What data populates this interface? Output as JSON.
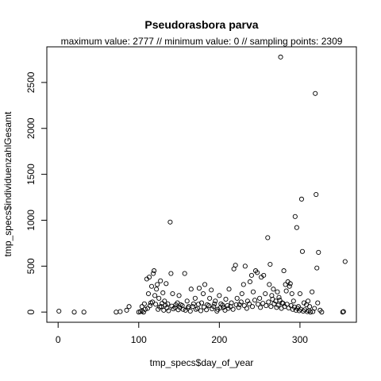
{
  "chart_data": {
    "type": "scatter",
    "title": "Pseudorasbora parva",
    "subtitle": "maximum value: 2777  //  minimum value: 0  // sampling points: 2309",
    "xlabel": "tmp_specs$day_of_year",
    "ylabel": "tmp_specs$individuenzahlGesamt",
    "xlim": [
      -14,
      370
    ],
    "ylim": [
      -111,
      2888
    ],
    "xticks": [
      0,
      100,
      200,
      300
    ],
    "yticks": [
      0,
      500,
      1000,
      1500,
      2000,
      2500
    ],
    "grid": false,
    "legend": "none",
    "series": [
      {
        "points": [
          [
            1,
            10
          ],
          [
            20,
            0
          ],
          [
            32,
            0
          ],
          [
            72,
            0
          ],
          [
            77,
            5
          ],
          [
            85,
            20
          ],
          [
            88,
            60
          ],
          [
            100,
            0
          ],
          [
            102,
            5
          ],
          [
            104,
            10
          ],
          [
            106,
            0
          ],
          [
            108,
            30
          ],
          [
            110,
            360
          ],
          [
            112,
            200
          ],
          [
            113,
            380
          ],
          [
            115,
            100
          ],
          [
            116,
            280
          ],
          [
            118,
            420
          ],
          [
            119,
            450
          ],
          [
            120,
            180
          ],
          [
            122,
            250
          ],
          [
            123,
            300
          ],
          [
            125,
            150
          ],
          [
            127,
            340
          ],
          [
            128,
            60
          ],
          [
            130,
            210
          ],
          [
            132,
            120
          ],
          [
            134,
            310
          ],
          [
            136,
            90
          ],
          [
            139,
            980
          ],
          [
            140,
            420
          ],
          [
            142,
            200
          ],
          [
            145,
            50
          ],
          [
            148,
            100
          ],
          [
            150,
            180
          ],
          [
            152,
            80
          ],
          [
            155,
            30
          ],
          [
            157,
            420
          ],
          [
            160,
            120
          ],
          [
            162,
            60
          ],
          [
            165,
            250
          ],
          [
            168,
            90
          ],
          [
            170,
            150
          ],
          [
            173,
            40
          ],
          [
            175,
            260
          ],
          [
            178,
            100
          ],
          [
            180,
            200
          ],
          [
            182,
            300
          ],
          [
            185,
            80
          ],
          [
            188,
            150
          ],
          [
            190,
            240
          ],
          [
            193,
            60
          ],
          [
            195,
            120
          ],
          [
            198,
            30
          ],
          [
            200,
            180
          ],
          [
            202,
            90
          ],
          [
            205,
            50
          ],
          [
            208,
            140
          ],
          [
            210,
            70
          ],
          [
            212,
            250
          ],
          [
            215,
            100
          ],
          [
            218,
            470
          ],
          [
            220,
            510
          ],
          [
            222,
            150
          ],
          [
            225,
            80
          ],
          [
            228,
            200
          ],
          [
            230,
            300
          ],
          [
            232,
            500
          ],
          [
            235,
            120
          ],
          [
            238,
            330
          ],
          [
            240,
            400
          ],
          [
            242,
            220
          ],
          [
            245,
            450
          ],
          [
            247,
            430
          ],
          [
            250,
            150
          ],
          [
            252,
            380
          ],
          [
            255,
            400
          ],
          [
            257,
            200
          ],
          [
            260,
            810
          ],
          [
            262,
            300
          ],
          [
            263,
            520
          ],
          [
            265,
            180
          ],
          [
            267,
            250
          ],
          [
            270,
            120
          ],
          [
            272,
            220
          ],
          [
            274,
            160
          ],
          [
            276,
            2777
          ],
          [
            278,
            100
          ],
          [
            280,
            450
          ],
          [
            282,
            300
          ],
          [
            283,
            230
          ],
          [
            285,
            330
          ],
          [
            287,
            280
          ],
          [
            288,
            310
          ],
          [
            290,
            200
          ],
          [
            292,
            120
          ],
          [
            294,
            1040
          ],
          [
            296,
            920
          ],
          [
            298,
            60
          ],
          [
            300,
            200
          ],
          [
            302,
            1230
          ],
          [
            303,
            660
          ],
          [
            305,
            100
          ],
          [
            308,
            80
          ],
          [
            310,
            120
          ],
          [
            312,
            60
          ],
          [
            315,
            220
          ],
          [
            318,
            40
          ],
          [
            319,
            2380
          ],
          [
            320,
            1280
          ],
          [
            321,
            480
          ],
          [
            322,
            100
          ],
          [
            323,
            650
          ],
          [
            325,
            20
          ],
          [
            327,
            0
          ],
          [
            353,
            0
          ],
          [
            354,
            5
          ],
          [
            356,
            550
          ],
          [
            104,
            60
          ],
          [
            107,
            90
          ],
          [
            111,
            40
          ],
          [
            114,
            70
          ],
          [
            117,
            110
          ],
          [
            121,
            85
          ],
          [
            124,
            30
          ],
          [
            126,
            55
          ],
          [
            129,
            95
          ],
          [
            131,
            20
          ],
          [
            133,
            75
          ],
          [
            135,
            45
          ],
          [
            137,
            15
          ],
          [
            141,
            65
          ],
          [
            143,
            35
          ],
          [
            146,
            80
          ],
          [
            149,
            25
          ],
          [
            151,
            50
          ],
          [
            154,
            70
          ],
          [
            158,
            20
          ],
          [
            161,
            45
          ],
          [
            164,
            10
          ],
          [
            167,
            60
          ],
          [
            171,
            30
          ],
          [
            174,
            85
          ],
          [
            177,
            15
          ],
          [
            181,
            55
          ],
          [
            184,
            25
          ],
          [
            187,
            70
          ],
          [
            191,
            35
          ],
          [
            194,
            90
          ],
          [
            197,
            10
          ],
          [
            201,
            45
          ],
          [
            204,
            75
          ],
          [
            207,
            20
          ],
          [
            211,
            40
          ],
          [
            214,
            60
          ],
          [
            217,
            30
          ],
          [
            221,
            80
          ],
          [
            224,
            50
          ],
          [
            227,
            110
          ],
          [
            231,
            70
          ],
          [
            234,
            40
          ],
          [
            237,
            90
          ],
          [
            241,
            60
          ],
          [
            244,
            130
          ],
          [
            248,
            85
          ],
          [
            251,
            50
          ],
          [
            254,
            95
          ],
          [
            258,
            70
          ],
          [
            261,
            110
          ],
          [
            264,
            60
          ],
          [
            266,
            140
          ],
          [
            268,
            90
          ],
          [
            271,
            50
          ],
          [
            273,
            75
          ],
          [
            275,
            130
          ],
          [
            277,
            40
          ],
          [
            279,
            95
          ],
          [
            281,
            60
          ],
          [
            284,
            85
          ],
          [
            286,
            45
          ],
          [
            289,
            70
          ],
          [
            291,
            30
          ],
          [
            293,
            55
          ],
          [
            295,
            20
          ],
          [
            297,
            40
          ],
          [
            299,
            15
          ],
          [
            301,
            30
          ],
          [
            304,
            10
          ],
          [
            306,
            25
          ],
          [
            309,
            5
          ],
          [
            311,
            15
          ],
          [
            313,
            0
          ],
          [
            316,
            5
          ]
        ]
      }
    ]
  }
}
